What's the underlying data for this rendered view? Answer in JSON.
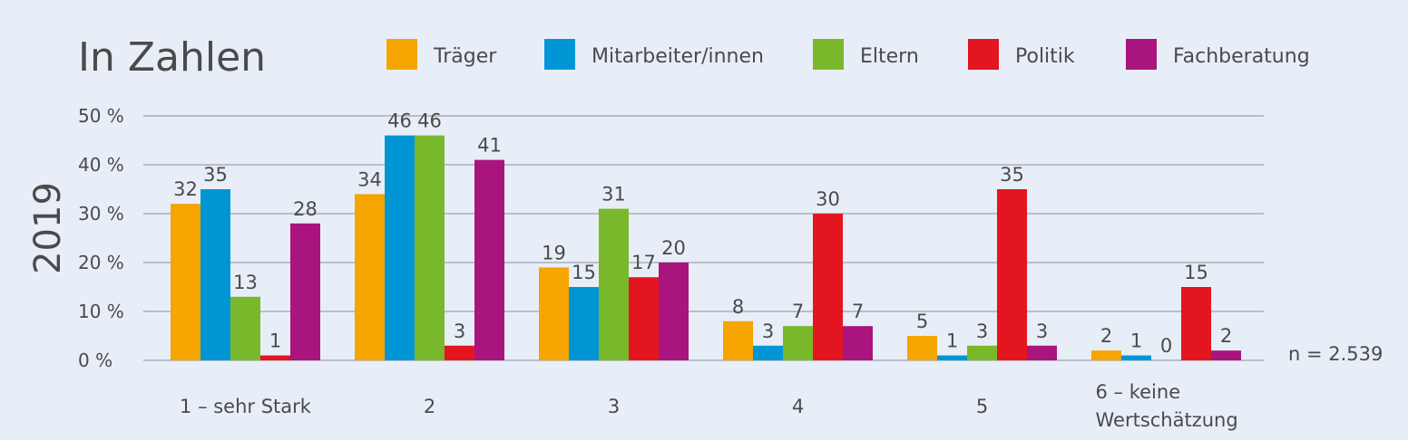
{
  "chart_data": {
    "type": "bar",
    "title": "In Zahlen",
    "year_label": "2019",
    "note": "n = 2.539",
    "categories": [
      "1 – sehr Stark",
      "2",
      "3",
      "4",
      "5",
      "6 – keine Wertschätzung"
    ],
    "category_lines": [
      [
        "1 – sehr Stark"
      ],
      [
        "2"
      ],
      [
        "3"
      ],
      [
        "4"
      ],
      [
        "5"
      ],
      [
        "6 – keine",
        "Wertschätzung"
      ]
    ],
    "series": [
      {
        "name": "Träger",
        "color": "#f5a400",
        "values": [
          32,
          34,
          19,
          8,
          5,
          2
        ]
      },
      {
        "name": "Mitarbeiter/innen",
        "color": "#0096d6",
        "values": [
          35,
          46,
          15,
          3,
          1,
          1
        ]
      },
      {
        "name": "Eltern",
        "color": "#78b82a",
        "values": [
          13,
          46,
          31,
          7,
          3,
          0
        ]
      },
      {
        "name": "Politik",
        "color": "#e3161f",
        "values": [
          1,
          3,
          17,
          30,
          35,
          15
        ]
      },
      {
        "name": "Fachberatung",
        "color": "#a9147f",
        "values": [
          28,
          41,
          20,
          7,
          3,
          2
        ]
      }
    ],
    "y_ticks": [
      "0 %",
      "10 %",
      "20 %",
      "30 %",
      "40 %",
      "50 %"
    ],
    "ylim": [
      0,
      50
    ],
    "grid": true,
    "legend": "top"
  }
}
